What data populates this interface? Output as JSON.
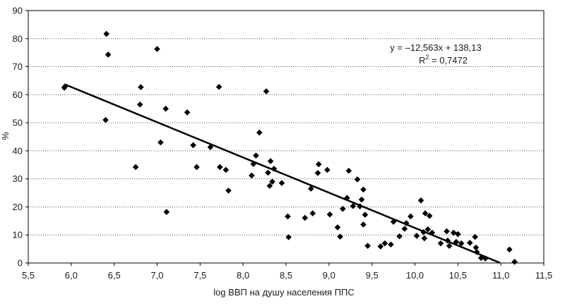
{
  "chart_data": {
    "type": "scatter",
    "title": "",
    "xlabel": "log ВВП на душу населения ППС",
    "ylabel": "%",
    "xlim": [
      5.5,
      11.5
    ],
    "ylim": [
      0,
      90
    ],
    "x_ticks": [
      5.5,
      6.0,
      6.5,
      7.0,
      7.5,
      8.0,
      8.5,
      9.0,
      9.5,
      10.0,
      10.5,
      11.0,
      11.5
    ],
    "x_tick_labels": [
      "5,5",
      "6,0",
      "6,5",
      "7,0",
      "7,5",
      "8,0",
      "8,5",
      "9,0",
      "9,5",
      "10,0",
      "10,5",
      "11,0",
      "11,5"
    ],
    "y_ticks": [
      0,
      10,
      20,
      30,
      40,
      50,
      60,
      70,
      80,
      90
    ],
    "y_tick_labels": [
      "0",
      "10",
      "20",
      "30",
      "40",
      "50",
      "60",
      "70",
      "80",
      "90"
    ],
    "grid": "horizontal",
    "marker": "diamond",
    "points": [
      [
        5.92,
        62.5
      ],
      [
        5.93,
        63.0
      ],
      [
        6.4,
        51.0
      ],
      [
        6.41,
        81.7
      ],
      [
        6.43,
        74.3
      ],
      [
        6.75,
        34.2
      ],
      [
        6.8,
        56.5
      ],
      [
        6.81,
        62.7
      ],
      [
        7.0,
        76.3
      ],
      [
        7.04,
        43.0
      ],
      [
        7.1,
        55.0
      ],
      [
        7.11,
        18.2
      ],
      [
        7.35,
        53.7
      ],
      [
        7.42,
        42.0
      ],
      [
        7.46,
        34.2
      ],
      [
        7.62,
        41.3
      ],
      [
        7.72,
        62.8
      ],
      [
        7.73,
        34.2
      ],
      [
        7.8,
        33.2
      ],
      [
        7.83,
        25.8
      ],
      [
        8.1,
        31.2
      ],
      [
        8.12,
        35.3
      ],
      [
        8.15,
        38.3
      ],
      [
        8.19,
        46.5
      ],
      [
        8.27,
        61.2
      ],
      [
        8.29,
        32.2
      ],
      [
        8.31,
        27.5
      ],
      [
        8.32,
        36.3
      ],
      [
        8.34,
        29.0
      ],
      [
        8.36,
        33.6
      ],
      [
        8.45,
        28.5
      ],
      [
        8.52,
        16.6
      ],
      [
        8.53,
        9.2
      ],
      [
        8.72,
        16.1
      ],
      [
        8.79,
        26.5
      ],
      [
        8.81,
        17.7
      ],
      [
        8.87,
        32.1
      ],
      [
        8.88,
        35.2
      ],
      [
        8.98,
        33.2
      ],
      [
        9.01,
        17.3
      ],
      [
        9.1,
        12.7
      ],
      [
        9.13,
        9.4
      ],
      [
        9.16,
        19.3
      ],
      [
        9.21,
        23.2
      ],
      [
        9.23,
        32.9
      ],
      [
        9.28,
        20.3
      ],
      [
        9.33,
        29.8
      ],
      [
        9.36,
        20.2
      ],
      [
        9.38,
        22.6
      ],
      [
        9.4,
        26.2
      ],
      [
        9.4,
        13.7
      ],
      [
        9.42,
        17.2
      ],
      [
        9.45,
        6.1
      ],
      [
        9.6,
        5.9
      ],
      [
        9.65,
        7.0
      ],
      [
        9.72,
        6.6
      ],
      [
        9.75,
        14.7
      ],
      [
        9.82,
        9.5
      ],
      [
        9.88,
        12.2
      ],
      [
        9.9,
        14.2
      ],
      [
        9.95,
        16.6
      ],
      [
        10.02,
        9.7
      ],
      [
        10.07,
        22.3
      ],
      [
        10.1,
        11.0
      ],
      [
        10.11,
        8.8
      ],
      [
        10.12,
        17.7
      ],
      [
        10.15,
        12.0
      ],
      [
        10.17,
        16.8
      ],
      [
        10.2,
        10.8
      ],
      [
        10.3,
        7.0
      ],
      [
        10.37,
        11.3
      ],
      [
        10.38,
        8.0
      ],
      [
        10.4,
        6.1
      ],
      [
        10.45,
        10.8
      ],
      [
        10.48,
        7.5
      ],
      [
        10.5,
        10.3
      ],
      [
        10.54,
        7.0
      ],
      [
        10.64,
        7.2
      ],
      [
        10.7,
        9.3
      ],
      [
        10.71,
        5.5
      ],
      [
        10.72,
        3.9
      ],
      [
        10.77,
        1.8
      ],
      [
        10.82,
        1.6
      ],
      [
        11.1,
        4.8
      ],
      [
        11.16,
        0.4
      ]
    ],
    "trendline": {
      "x_start": 5.93,
      "x_end": 10.99,
      "slope": -12.563,
      "intercept": 138.13
    },
    "annotation": {
      "equation": "y = –12,563x + 138,13",
      "r_squared_prefix": "R",
      "r_squared_exp": "2",
      "r_squared_value": " = 0,7472"
    }
  }
}
